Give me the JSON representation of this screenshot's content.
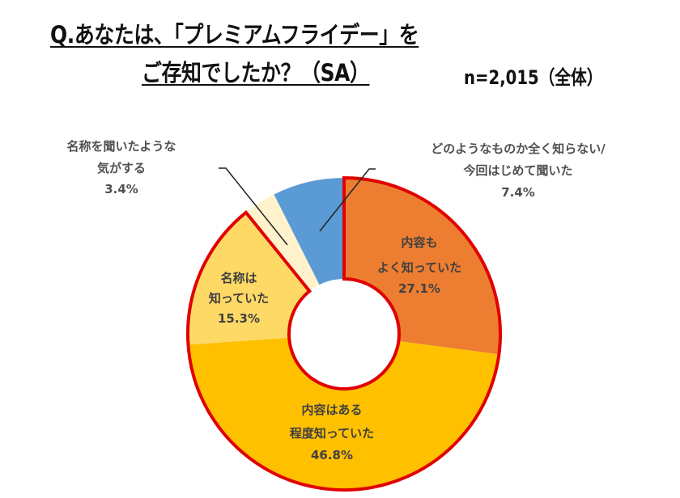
{
  "header": {
    "title_line1": "Q.あなたは、「プレミアムフライデー」を",
    "title_line2": "ご存知でしたか？（SA）",
    "sample_size": "n=2,015（全体）"
  },
  "colors": {
    "known_well": "#ED7D31",
    "known_somewhat": "#FFC000",
    "name_known": "#FFD966",
    "heard_name": "#FFF2CC",
    "unknown": "#5B9BD5",
    "highlight_border": "#E00000",
    "label_text": "#404040"
  },
  "labels": {
    "known_well": {
      "line1": "内容も",
      "line2": "よく知っていた",
      "value": "27.1%"
    },
    "known_somewhat": {
      "line1": "内容はある",
      "line2": "程度知っていた",
      "value": "46.8%"
    },
    "name_known": {
      "line1": "名称は",
      "line2": "知っていた",
      "value": "15.3%"
    },
    "heard_name": {
      "line1": "名称を聞いたような",
      "line2": "気がする",
      "value": "3.4%"
    },
    "unknown": {
      "line1": "どのようなものか全く知らない/",
      "line2": "今回はじめて聞いた",
      "value": "7.4%"
    }
  },
  "chart_data": {
    "type": "pie",
    "subtype": "donut",
    "title": "Q.あなたは、「プレミアムフライデー」をご存知でしたか？（SA）",
    "subtitle": "n=2,015（全体）",
    "start_angle": "12 o'clock, clockwise",
    "categories": [
      "内容もよく知っていた",
      "内容はある程度知っていた",
      "名称は知っていた",
      "名称を聞いたような気がする",
      "どのようなものか全く知らない/今回はじめて聞いた"
    ],
    "values": [
      27.1,
      46.8,
      15.3,
      3.4,
      7.4
    ],
    "unit": "%",
    "highlighted": [
      "内容もよく知っていた",
      "内容はある程度知っていた",
      "名称は知っていた"
    ],
    "legend": "none (data labels on/near slices)"
  }
}
